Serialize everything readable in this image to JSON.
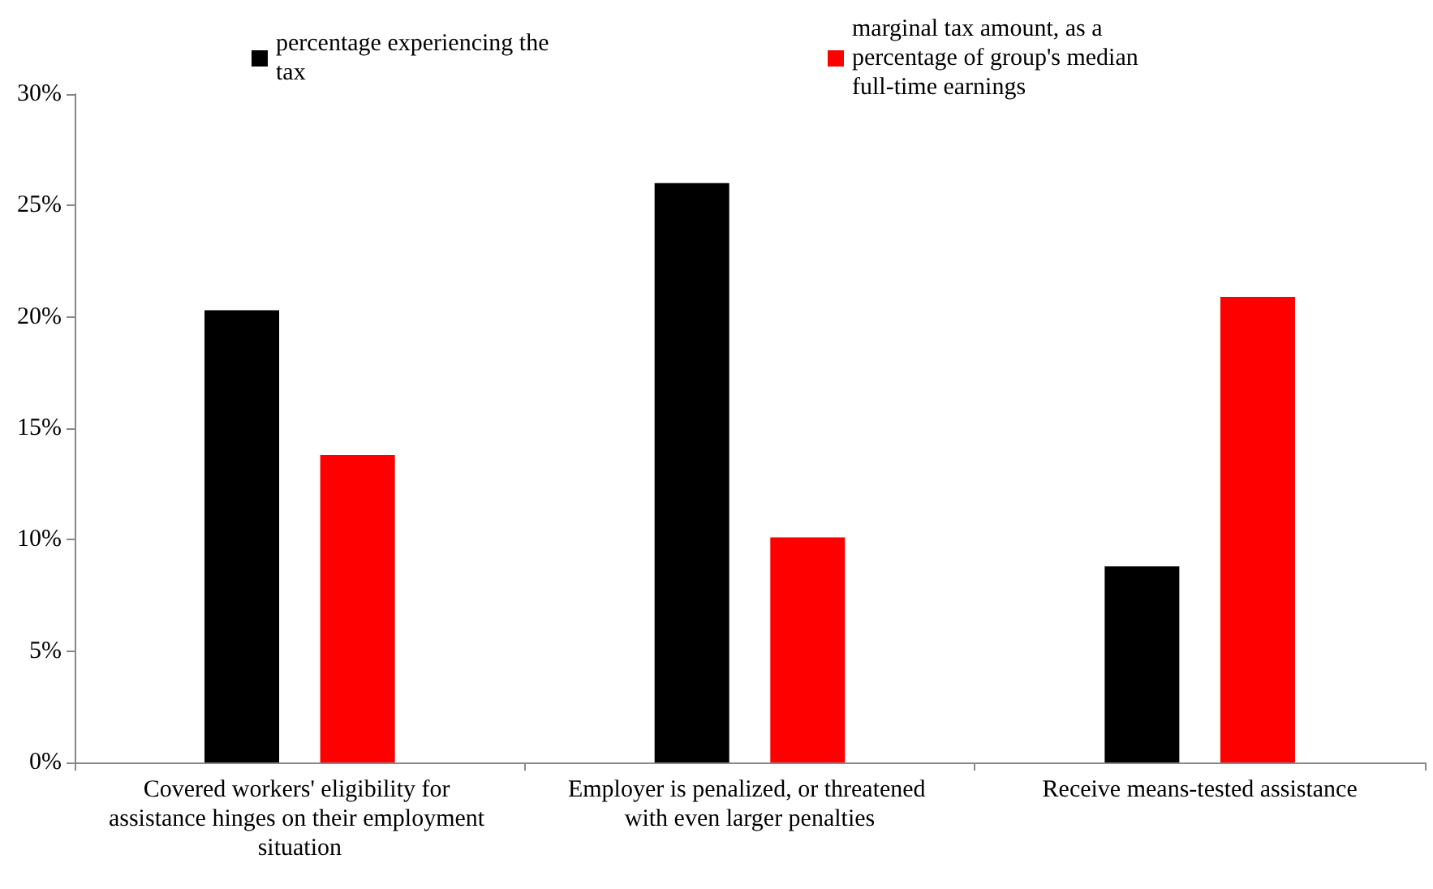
{
  "chart_data": {
    "type": "bar",
    "categories": [
      "Covered workers' eligibility for assistance hinges on their employment situation",
      "Employer is penalized, or threatened with even larger penalties",
      "Receive means-tested assistance"
    ],
    "series": [
      {
        "name": "percentage experiencing the tax",
        "color": "#000000",
        "values": [
          20.3,
          26.0,
          8.8
        ]
      },
      {
        "name": "marginal tax amount, as a percentage of group's median full-time earnings",
        "color": "#ff0000",
        "values": [
          13.8,
          10.1,
          20.9
        ]
      }
    ],
    "ylim": [
      0,
      30
    ],
    "yticks": [
      {
        "value": 0,
        "label": "0%"
      },
      {
        "value": 5,
        "label": "5%"
      },
      {
        "value": 10,
        "label": "10%"
      },
      {
        "value": 15,
        "label": "15%"
      },
      {
        "value": 20,
        "label": "20%"
      },
      {
        "value": 25,
        "label": "25%"
      },
      {
        "value": 30,
        "label": "30%"
      }
    ],
    "grid": false,
    "legend": "top"
  }
}
